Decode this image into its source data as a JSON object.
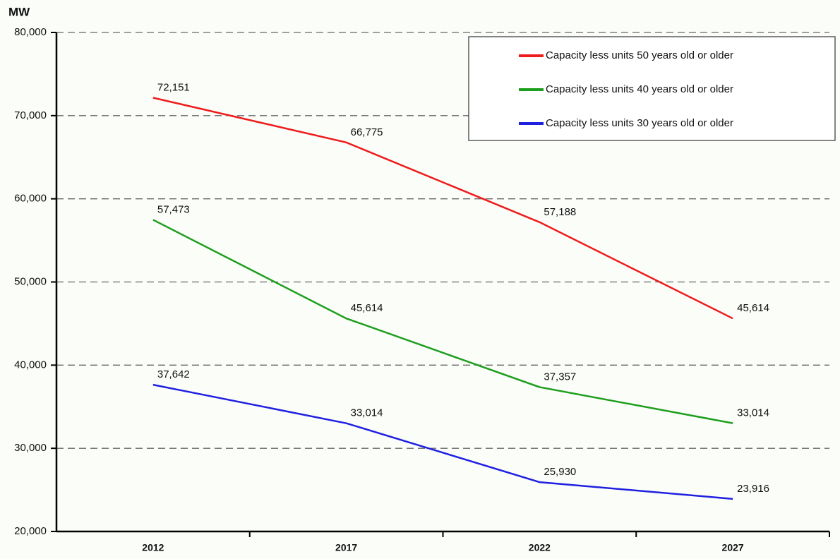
{
  "chart_data": {
    "type": "line",
    "y_label": "MW",
    "categories": [
      "2012",
      "2017",
      "2022",
      "2027"
    ],
    "ylim": [
      20000,
      80000
    ],
    "yticks": [
      {
        "value": 20000,
        "label": "20,000"
      },
      {
        "value": 30000,
        "label": "30,000"
      },
      {
        "value": 40000,
        "label": "40,000"
      },
      {
        "value": 50000,
        "label": "50,000"
      },
      {
        "value": 60000,
        "label": "60,000"
      },
      {
        "value": 70000,
        "label": "70,000"
      },
      {
        "value": 80000,
        "label": "80,000"
      }
    ],
    "grid": true,
    "legend": "upper right",
    "series": [
      {
        "name": "Capacity less units 50 years old or older",
        "color": "#ee1c1c",
        "values": [
          72151,
          66775,
          57188,
          45614
        ],
        "value_labels": [
          "72,151",
          "66,775",
          "57,188",
          "45,614"
        ]
      },
      {
        "name": "Capacity less units 40 years old or older",
        "color": "#1e9e1e",
        "values": [
          57473,
          45614,
          37357,
          33014
        ],
        "value_labels": [
          "57,473",
          "45,614",
          "37,357",
          "33,014"
        ]
      },
      {
        "name": "Capacity less units 30 years old or older",
        "color": "#2020e0",
        "values": [
          37642,
          33014,
          25930,
          23916
        ],
        "value_labels": [
          "37,642",
          "33,014",
          "25,930",
          "23,916"
        ]
      }
    ]
  }
}
